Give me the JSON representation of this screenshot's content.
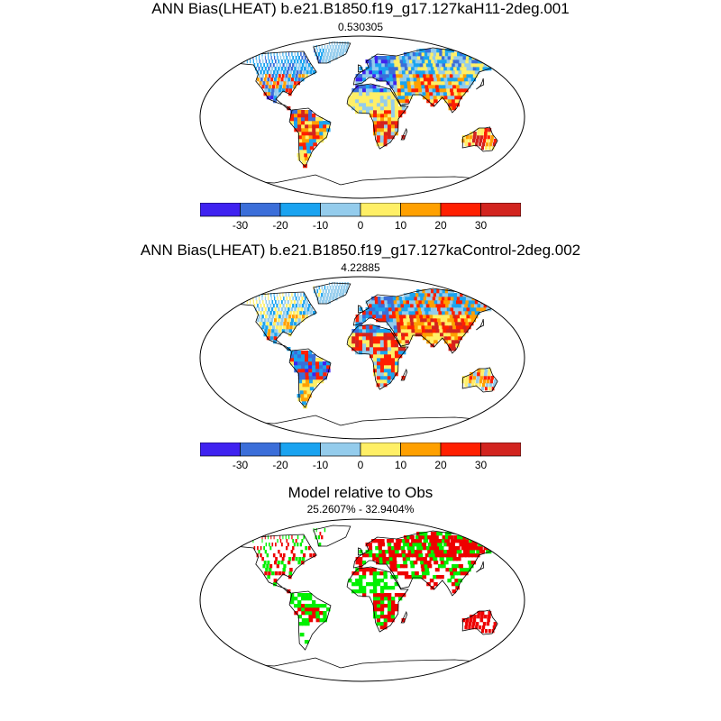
{
  "panels": [
    {
      "title": "ANN Bias(LHEAT) b.e21.B1850.f19_g17.127kaH11-2deg.001",
      "subtitle": "0.530305",
      "map_kind": "bias",
      "variant": 1
    },
    {
      "title": "ANN Bias(LHEAT) b.e21.B1850.f19_g17.127kaControl-2deg.002",
      "subtitle": "4.22885",
      "map_kind": "bias",
      "variant": 2
    },
    {
      "title": "Model relative to Obs",
      "subtitle": "25.2607% - 32.9404%",
      "map_kind": "relative",
      "variant": 3
    }
  ],
  "colorbar": {
    "colors": [
      "#3f22f0",
      "#3b6ed9",
      "#1aa3f0",
      "#94ccec",
      "#ffef66",
      "#ffa000",
      "#ff1f00",
      "#d2241f"
    ],
    "tick_labels": [
      "-30",
      "-20",
      "-10",
      "0",
      "10",
      "20",
      "30"
    ]
  },
  "relative_colors": {
    "model_better": "#00f000",
    "model_worse": "#ee0000"
  }
}
